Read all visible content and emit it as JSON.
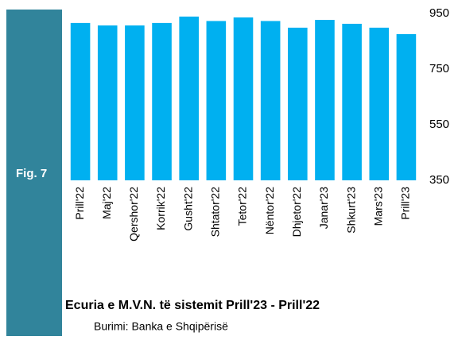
{
  "chart_data": {
    "type": "bar",
    "figure_label": "Fig. 7",
    "title": "Ecuria e M.V.N. të sistemit Prill'23 - Prill'22",
    "source": "Burimi: Banka e Shqipërisë",
    "categories": [
      "Prill'22",
      "Maj'22",
      "Qershor'22",
      "Korrik'22",
      "Gusht'22",
      "Shtator'22",
      "Tetor'22",
      "Nëntor'22",
      "Dhjetor'22",
      "Janar'23",
      "Shkurt'23",
      "Mars'23",
      "Prill'23"
    ],
    "values": [
      916,
      907,
      907,
      916,
      939,
      923,
      936,
      923,
      899,
      927,
      913,
      899,
      876
    ],
    "color": "#00b0f0",
    "ylim": [
      350,
      950
    ],
    "yticks": [
      350,
      550,
      750,
      950
    ],
    "grid": false
  }
}
